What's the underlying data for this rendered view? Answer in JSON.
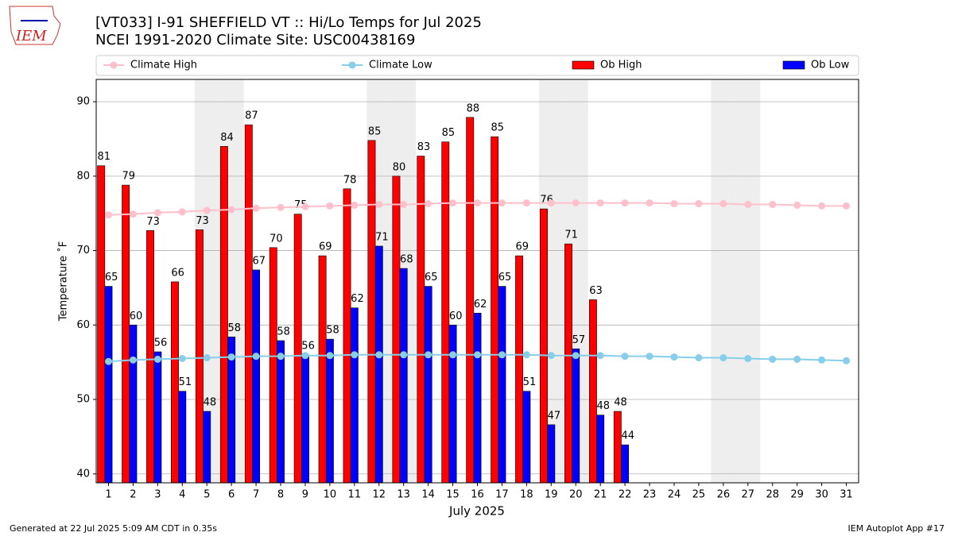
{
  "chart_data": {
    "type": "bar",
    "title": "[VT033] I-91 SHEFFIELD  VT :: Hi/Lo Temps for Jul 2025",
    "subtitle": "NCEI 1991-2020 Climate Site: USC00438169",
    "x_label": "July 2025",
    "y_label": "Temperature ˚F",
    "logo_text": "IEM",
    "footer_left": "Generated at 22 Jul 2025 5:09 AM CDT in 0.35s",
    "footer_right": "IEM Autoplot App #17",
    "x": [
      1,
      2,
      3,
      4,
      5,
      6,
      7,
      8,
      9,
      10,
      11,
      12,
      13,
      14,
      15,
      16,
      17,
      18,
      19,
      20,
      21,
      22,
      23,
      24,
      25,
      26,
      27,
      28,
      29,
      30,
      31
    ],
    "xlim": [
      0.5,
      31.5
    ],
    "xticks": [
      1,
      2,
      3,
      4,
      5,
      6,
      7,
      8,
      9,
      10,
      11,
      12,
      13,
      14,
      15,
      16,
      17,
      18,
      19,
      20,
      21,
      22,
      23,
      24,
      25,
      26,
      27,
      28,
      29,
      30,
      31
    ],
    "ylim": [
      38.8,
      93.0
    ],
    "yticks": [
      40,
      50,
      60,
      70,
      80,
      90
    ],
    "grid": true,
    "highlight_days": [
      5,
      6,
      12,
      13,
      19,
      20,
      26,
      27
    ],
    "series": [
      {
        "name": "Climate High",
        "kind": "line",
        "color": "#ffc0cb",
        "values": [
          74.8,
          74.9,
          75.1,
          75.2,
          75.4,
          75.5,
          75.7,
          75.8,
          75.9,
          76.0,
          76.1,
          76.2,
          76.2,
          76.3,
          76.4,
          76.4,
          76.4,
          76.4,
          76.4,
          76.4,
          76.4,
          76.4,
          76.4,
          76.3,
          76.3,
          76.3,
          76.2,
          76.2,
          76.1,
          76.0,
          76.0
        ]
      },
      {
        "name": "Climate Low",
        "kind": "line",
        "color": "#87ceeb",
        "values": [
          55.1,
          55.3,
          55.4,
          55.5,
          55.6,
          55.7,
          55.8,
          55.8,
          55.9,
          55.9,
          56.0,
          56.0,
          56.0,
          56.0,
          56.0,
          56.0,
          56.0,
          56.0,
          55.9,
          55.9,
          55.9,
          55.8,
          55.8,
          55.7,
          55.6,
          55.6,
          55.5,
          55.4,
          55.4,
          55.3,
          55.2
        ]
      },
      {
        "name": "Ob High",
        "kind": "bar",
        "color": "#ff0000",
        "values": [
          81.4,
          78.8,
          72.7,
          65.8,
          72.8,
          84.0,
          86.9,
          70.4,
          74.9,
          69.3,
          78.3,
          84.8,
          80.0,
          82.7,
          84.6,
          87.9,
          85.3,
          69.3,
          75.6,
          70.9,
          63.4,
          48.4,
          null,
          null,
          null,
          null,
          null,
          null,
          null,
          null,
          null
        ],
        "value_labels": [
          "81",
          "79",
          "73",
          "66",
          "73",
          "84",
          "87",
          "70",
          "75",
          "69",
          "78",
          "85",
          "80",
          "83",
          "85",
          "88",
          "85",
          "69",
          "76",
          "71",
          "63",
          "48",
          null,
          null,
          null,
          null,
          null,
          null,
          null,
          null,
          null
        ]
      },
      {
        "name": "Ob Low",
        "kind": "bar",
        "color": "#0000ff",
        "values": [
          65.2,
          60.0,
          56.4,
          51.1,
          48.4,
          58.4,
          67.4,
          57.9,
          56.0,
          58.1,
          62.3,
          70.6,
          67.6,
          65.2,
          60.0,
          61.6,
          65.2,
          51.1,
          46.6,
          56.8,
          47.9,
          43.9,
          null,
          null,
          null,
          null,
          null,
          null,
          null,
          null,
          null
        ],
        "value_labels": [
          "65",
          "60",
          "56",
          "51",
          "48",
          "58",
          "67",
          "58",
          "56",
          "58",
          "62",
          "71",
          "68",
          "65",
          "60",
          "62",
          "65",
          "51",
          "47",
          "57",
          "48",
          "44",
          null,
          null,
          null,
          null,
          null,
          null,
          null,
          null,
          null
        ]
      }
    ]
  }
}
